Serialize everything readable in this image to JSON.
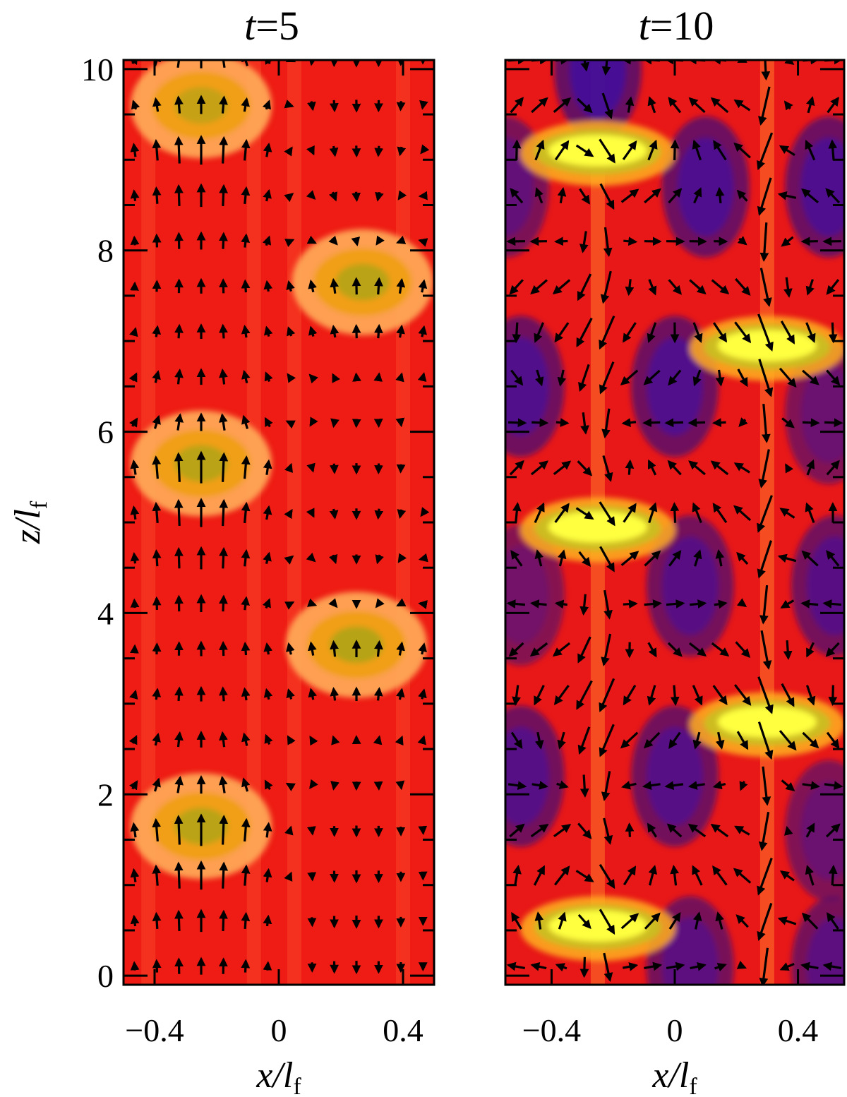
{
  "chart_data": [
    {
      "type": "heatmap",
      "title_var": "t",
      "title_eq": "=",
      "title_val": "5",
      "xlabel": "x/l",
      "xlabel_sub": "f",
      "ylabel": "z/l",
      "ylabel_sub": "f",
      "xlim": [
        -0.5,
        0.5
      ],
      "ylim": [
        -0.1,
        10.1
      ],
      "xticks": [
        {
          "v": -0.4,
          "label": "−0.4"
        },
        {
          "v": 0,
          "label": "0"
        },
        {
          "v": 0.4,
          "label": "0.4"
        }
      ],
      "yticks": [
        {
          "v": 0,
          "label": "0"
        },
        {
          "v": 2,
          "label": "2"
        },
        {
          "v": 4,
          "label": "4"
        },
        {
          "v": 6,
          "label": "6"
        },
        {
          "v": 8,
          "label": "8"
        },
        {
          "v": 10,
          "label": "10"
        }
      ],
      "background_color": "#ee1c14",
      "bright_spots": [
        {
          "x": -0.25,
          "z": 9.6,
          "level": 0.6
        },
        {
          "x": 0.27,
          "z": 7.65,
          "level": 0.75
        },
        {
          "x": -0.25,
          "z": 5.65,
          "level": 0.75
        },
        {
          "x": 0.25,
          "z": 3.65,
          "level": 0.8
        },
        {
          "x": -0.25,
          "z": 1.65,
          "level": 0.75
        }
      ],
      "dark_spots": [],
      "arrows": "upward flow above bright spots, weak downward flow in x>0 columns"
    },
    {
      "type": "heatmap",
      "title_var": "t",
      "title_eq": "=",
      "title_val": "10",
      "xlabel": "x/l",
      "xlabel_sub": "f",
      "xlim": [
        -0.55,
        0.55
      ],
      "ylim": [
        -0.1,
        10.1
      ],
      "xticks": [
        {
          "v": -0.4,
          "label": "−0.4"
        },
        {
          "v": 0,
          "label": "0"
        },
        {
          "v": 0.4,
          "label": "0.4"
        }
      ],
      "background_color": "#e81818",
      "bright_spots": [
        {
          "x": -0.25,
          "z": 9.1,
          "level": 1.0
        },
        {
          "x": 0.3,
          "z": 6.95,
          "level": 1.0
        },
        {
          "x": -0.25,
          "z": 4.95,
          "level": 1.0
        },
        {
          "x": 0.3,
          "z": 2.8,
          "level": 1.0
        },
        {
          "x": -0.25,
          "z": 0.55,
          "level": 1.0
        }
      ],
      "dark_spots": [
        {
          "x": -0.25,
          "z": 10.0,
          "level": 1.0
        },
        {
          "x": 0.1,
          "z": 8.7,
          "level": 0.9
        },
        {
          "x": 0.5,
          "z": 8.7,
          "level": 0.9
        },
        {
          "x": -0.55,
          "z": 8.7,
          "level": 0.6
        },
        {
          "x": -0.5,
          "z": 6.5,
          "level": 0.85
        },
        {
          "x": 0.0,
          "z": 6.5,
          "level": 0.85
        },
        {
          "x": 0.5,
          "z": 6.2,
          "level": 0.5
        },
        {
          "x": 0.05,
          "z": 4.3,
          "level": 0.75
        },
        {
          "x": 0.52,
          "z": 4.3,
          "level": 0.75
        },
        {
          "x": -0.5,
          "z": 4.2,
          "level": 0.4
        },
        {
          "x": -0.5,
          "z": 2.2,
          "level": 0.8
        },
        {
          "x": 0.0,
          "z": 2.2,
          "level": 0.8
        },
        {
          "x": 0.5,
          "z": 1.6,
          "level": 0.5
        },
        {
          "x": 0.05,
          "z": 0.1,
          "level": 0.7
        },
        {
          "x": 0.52,
          "z": 0.1,
          "level": 0.7
        }
      ],
      "arrows": "strong downward jets near x=-0.25 and x=0.3, upward flow in between"
    }
  ]
}
